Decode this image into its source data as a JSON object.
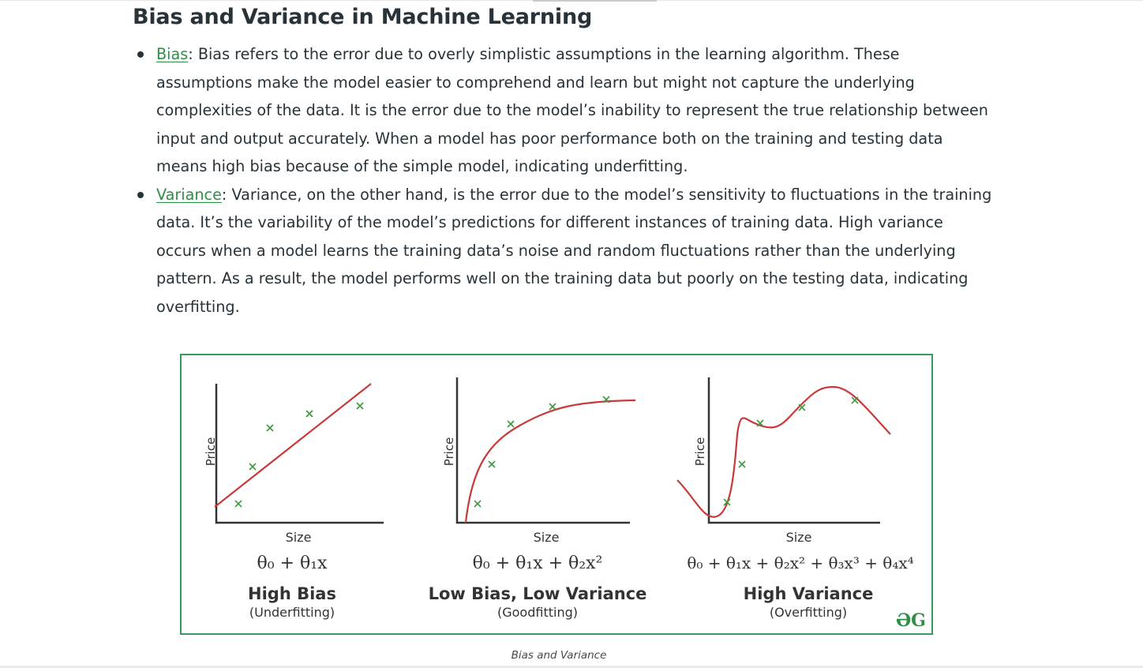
{
  "heading": "Bias and Variance in Machine Learning",
  "bullets": [
    {
      "term": "Bias",
      "text": ": Bias refers to the error due to overly simplistic assumptions in the learning algorithm. These assumptions make the model easier to comprehend and learn but might not capture the underlying complexities of the data. It is the error due to the model’s inability to represent the true relationship between input and output accurately. When a model has poor performance both on the training and testing data means high bias because of the simple model, indicating underfitting."
    },
    {
      "term": "Variance",
      "text": ": Variance, on the other hand, is the error due to the model’s sensitivity to fluctuations in the training data. It’s the variability of the model’s predictions for different instances of training data. High variance occurs when a model learns the training data’s noise and random fluctuations rather than the underlying pattern. As a result, the model performs well on the training data but poorly on the testing data, indicating overfitting."
    }
  ],
  "figure": {
    "panels": [
      {
        "xlabel": "Size",
        "ylabel": "Price",
        "formula": "θ₀ + θ₁x",
        "title": "High Bias",
        "subtitle": "(Underfitting)"
      },
      {
        "xlabel": "Size",
        "ylabel": "Price",
        "formula": "θ₀ + θ₁x + θ₂x²",
        "title": "Low Bias, Low Variance",
        "subtitle": "(Goodfitting)"
      },
      {
        "xlabel": "Size",
        "ylabel": "Price",
        "formula": "θ₀ + θ₁x + θ₂x² + θ₃x³ + θ₄x⁴",
        "title": "High Variance",
        "subtitle": "(Overfitting)"
      }
    ],
    "logo": "GfG",
    "colors": {
      "border": "#3b9a5b",
      "curve": "#c83a3a",
      "marker": "#3e9a3e",
      "axis": "#333333"
    }
  },
  "caption": "Bias and Variance"
}
